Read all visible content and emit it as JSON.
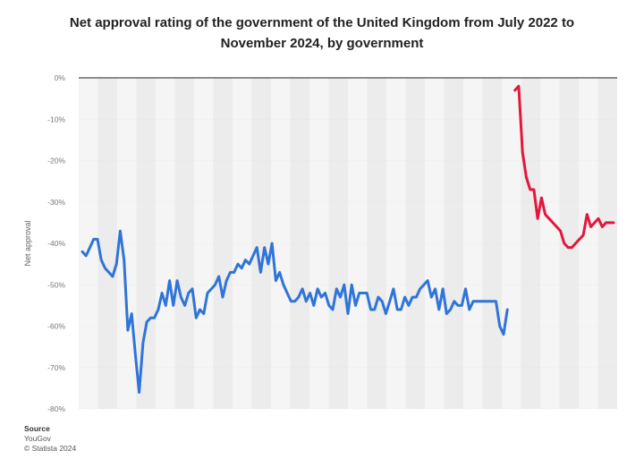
{
  "header": {
    "title_line1": "Net approval rating of the government of the United Kingdom from July 2022 to",
    "title_line2": "November 2024, by government"
  },
  "footer": {
    "source_heading": "Source",
    "source_name": "YouGov",
    "copyright": "© Statista 2024"
  },
  "chart_data": {
    "type": "line",
    "title": "Net approval rating of the government of the United Kingdom from July 2022 to November 2024, by government",
    "xlabel": "",
    "ylabel": "Net approval",
    "ylim": [
      -80,
      0
    ],
    "y_ticks": [
      "0%",
      "-10%",
      "-20%",
      "-30%",
      "-40%",
      "-50%",
      "-60%",
      "-70%",
      "-80%"
    ],
    "y_tick_values": [
      0,
      -10,
      -20,
      -30,
      -40,
      -50,
      -60,
      -70,
      -80
    ],
    "grid": "alternating vertical bands",
    "legend": "none",
    "series": [
      {
        "color": "#2f74d8",
        "x": [
          0,
          1,
          2,
          3,
          4,
          5,
          6,
          7,
          8,
          9,
          10,
          11,
          12,
          13,
          14,
          15,
          16,
          17,
          18,
          19,
          20,
          21,
          22,
          23,
          24,
          25,
          26,
          27,
          28,
          29,
          30,
          31,
          32,
          33,
          34,
          35,
          36,
          37,
          38,
          39,
          40,
          41,
          42,
          43,
          44,
          45,
          46,
          47,
          48,
          49,
          50,
          51,
          52,
          53,
          54,
          55,
          56,
          57,
          58,
          59,
          60,
          61,
          62,
          63,
          64,
          65,
          66,
          67,
          68,
          69,
          70,
          71,
          72,
          73,
          74,
          75,
          76,
          77,
          78,
          79,
          80,
          81,
          82,
          83,
          84,
          85,
          86,
          87,
          88,
          89,
          90,
          91,
          92,
          93,
          94,
          95,
          96,
          97,
          98,
          99,
          100,
          101,
          102,
          103,
          104
        ],
        "values": [
          -42,
          -43,
          -41,
          -39,
          -39,
          -44,
          -46,
          -47,
          -48,
          -45,
          -37,
          -44,
          -61,
          -57,
          -67,
          -76,
          -64,
          -59,
          -58,
          -58,
          -56,
          -52,
          -55,
          -49,
          -55,
          -49,
          -53,
          -55,
          -52,
          -51,
          -58,
          -56,
          -57,
          -52,
          -51,
          -50,
          -48,
          -53,
          -49,
          -47,
          -47,
          -45,
          -46,
          -44,
          -45,
          -43,
          -41,
          -47,
          -41,
          -45,
          -40,
          -49,
          -47,
          -50,
          -52,
          -54,
          -54,
          -53,
          -51,
          -54,
          -52,
          -55,
          -51,
          -53,
          -52,
          -55,
          -56,
          -51,
          -53,
          -50,
          -57,
          -50,
          -55,
          -52,
          -52,
          -52,
          -56,
          -56,
          -53,
          -54,
          -57,
          -54,
          -51,
          -56,
          -56,
          -53,
          -55,
          -53,
          -53,
          -51,
          -50,
          -49,
          -53,
          -51,
          -56,
          -51,
          -57,
          -56,
          -54,
          -55,
          -55,
          -51,
          -56,
          -54,
          -54
        ],
        "tail_x": [
          104,
          105,
          106,
          107,
          108,
          109,
          110,
          111,
          112
        ],
        "tail_values": [
          -54,
          -54,
          -54,
          -54,
          -54,
          -54,
          -60,
          -62,
          -56
        ]
      },
      {
        "color": "#e3163c",
        "x": [
          114,
          115,
          116,
          117,
          118,
          119,
          120,
          121,
          122,
          123,
          124,
          125,
          126,
          127,
          128,
          129,
          130,
          131,
          132,
          133,
          134,
          135,
          136,
          137,
          138,
          139,
          140
        ],
        "values": [
          -3,
          -2,
          -18,
          -24,
          -27,
          -27,
          -34,
          -29,
          -33,
          -34,
          -35,
          -36,
          -37,
          -40,
          -41,
          -41,
          -40,
          -39,
          -38,
          -33,
          -36,
          -35,
          -34,
          -36,
          -35,
          -35,
          -35
        ]
      }
    ]
  }
}
